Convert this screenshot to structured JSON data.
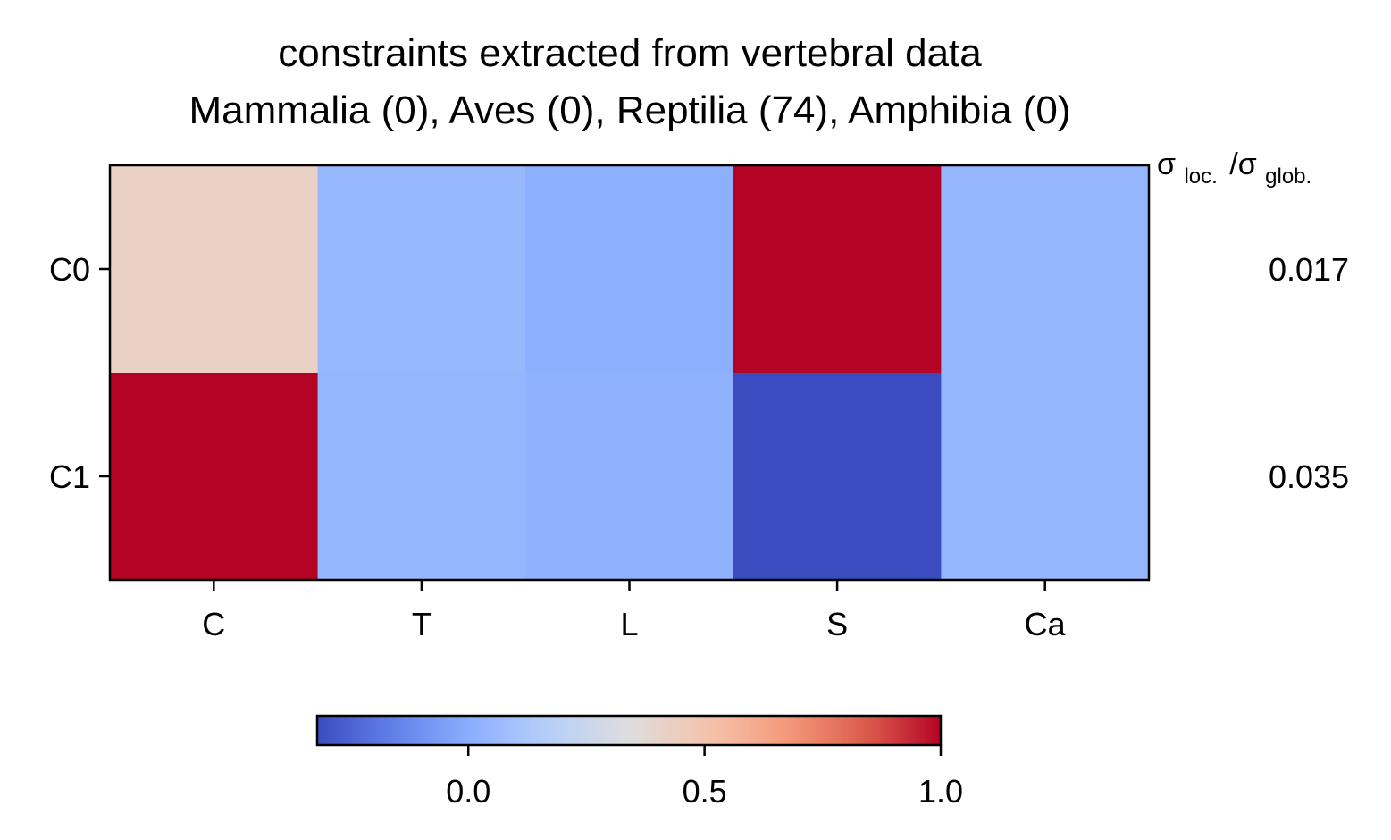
{
  "chart_data": {
    "type": "heatmap",
    "title_lines": [
      "constraints extracted from vertebral data",
      "Mammalia (0), Aves (0), Reptilia (74), Amphibia (0)"
    ],
    "columns": [
      "C",
      "T",
      "L",
      "S",
      "Ca"
    ],
    "rows": [
      "C0",
      "C1"
    ],
    "values": [
      [
        0.42,
        0.05,
        0.01,
        1.0,
        0.04
      ],
      [
        1.0,
        0.04,
        0.02,
        -0.32,
        0.04
      ]
    ],
    "right_header": {
      "sigma": "σ",
      "loc_sub": "loc.",
      "slash": "/σ",
      "glob_sub": "glob."
    },
    "right_values": [
      "0.017",
      "0.035"
    ],
    "colorbar": {
      "colormap": "coolwarm",
      "vmin": -0.32,
      "vmax": 1.0,
      "ticks": [
        0.0,
        0.5,
        1.0
      ],
      "tick_labels": [
        "0.0",
        "0.5",
        "1.0"
      ]
    },
    "xlabel": "",
    "ylabel": ""
  }
}
